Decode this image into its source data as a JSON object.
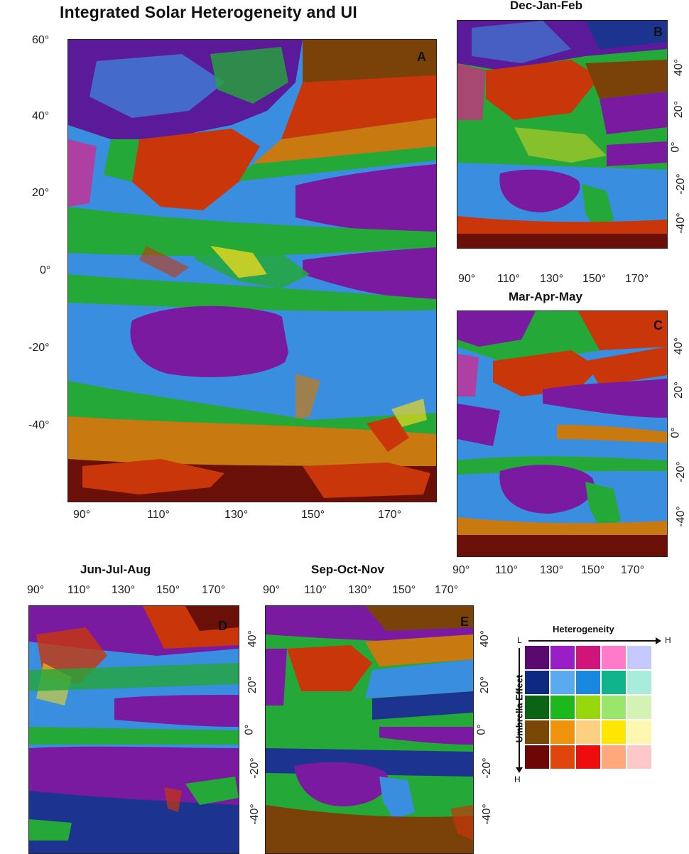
{
  "title": "Integrated Solar Heterogeneity and UI",
  "panels": {
    "A": {
      "label": "A",
      "lat_ticks": [
        "60°",
        "40°",
        "20°",
        "0°",
        "-20°",
        "-40°"
      ],
      "lon_ticks": [
        "90°",
        "110°",
        "130°",
        "150°",
        "170°"
      ]
    },
    "B": {
      "label": "B",
      "season": "Dec-Jan-Feb",
      "lat_ticks": [
        "40°",
        "20°",
        "0°",
        "-20°",
        "-40°"
      ],
      "lon_ticks": [
        "90°",
        "110°",
        "130°",
        "150°",
        "170°"
      ]
    },
    "C": {
      "label": "C",
      "season": "Mar-Apr-May",
      "lat_ticks": [
        "40°",
        "20°",
        "0°",
        "-20°",
        "-40°"
      ],
      "lon_ticks": [
        "90°",
        "110°",
        "130°",
        "150°",
        "170°"
      ]
    },
    "D": {
      "label": "D",
      "season": "Jun-Jul-Aug",
      "lon_ticks": [
        "90°",
        "110°",
        "130°",
        "150°",
        "170°"
      ]
    },
    "E": {
      "label": "E",
      "season": "Sep-Oct-Nov",
      "lat_ticks": [
        "40°",
        "20°",
        "0°",
        "-20°",
        "-40°"
      ],
      "lon_ticks": [
        "90°",
        "110°",
        "130°",
        "150°",
        "170°"
      ]
    }
  },
  "legend": {
    "x_title": "Heterogeneity",
    "y_title": "Umbrella Effect",
    "x_low": "L",
    "x_high": "H",
    "y_high": "H",
    "colors": [
      [
        "#5a0a6e",
        "#9a1ec8",
        "#d0147a",
        "#ff7ac8",
        "#c4caff"
      ],
      [
        "#0c2a80",
        "#5aaaf0",
        "#1888e0",
        "#10b48c",
        "#a8ecdc"
      ],
      [
        "#0a6414",
        "#1cb81c",
        "#96d80c",
        "#9ae66c",
        "#d4f2b4"
      ],
      [
        "#7a4806",
        "#f0920c",
        "#ffd080",
        "#ffe600",
        "#fff6b0"
      ],
      [
        "#6e0606",
        "#e0460c",
        "#f00c0c",
        "#ffa87c",
        "#ffc8c8"
      ]
    ]
  },
  "palette": {
    "purple": "#7a1aa0",
    "blue": "#3a8ee0",
    "navy": "#1c3490",
    "green": "#24a838",
    "orange": "#c87a10",
    "red": "#c8360a",
    "darkred": "#6a1008",
    "brown": "#7a4208",
    "yellow": "#e8d820",
    "magenta": "#e0208a"
  }
}
